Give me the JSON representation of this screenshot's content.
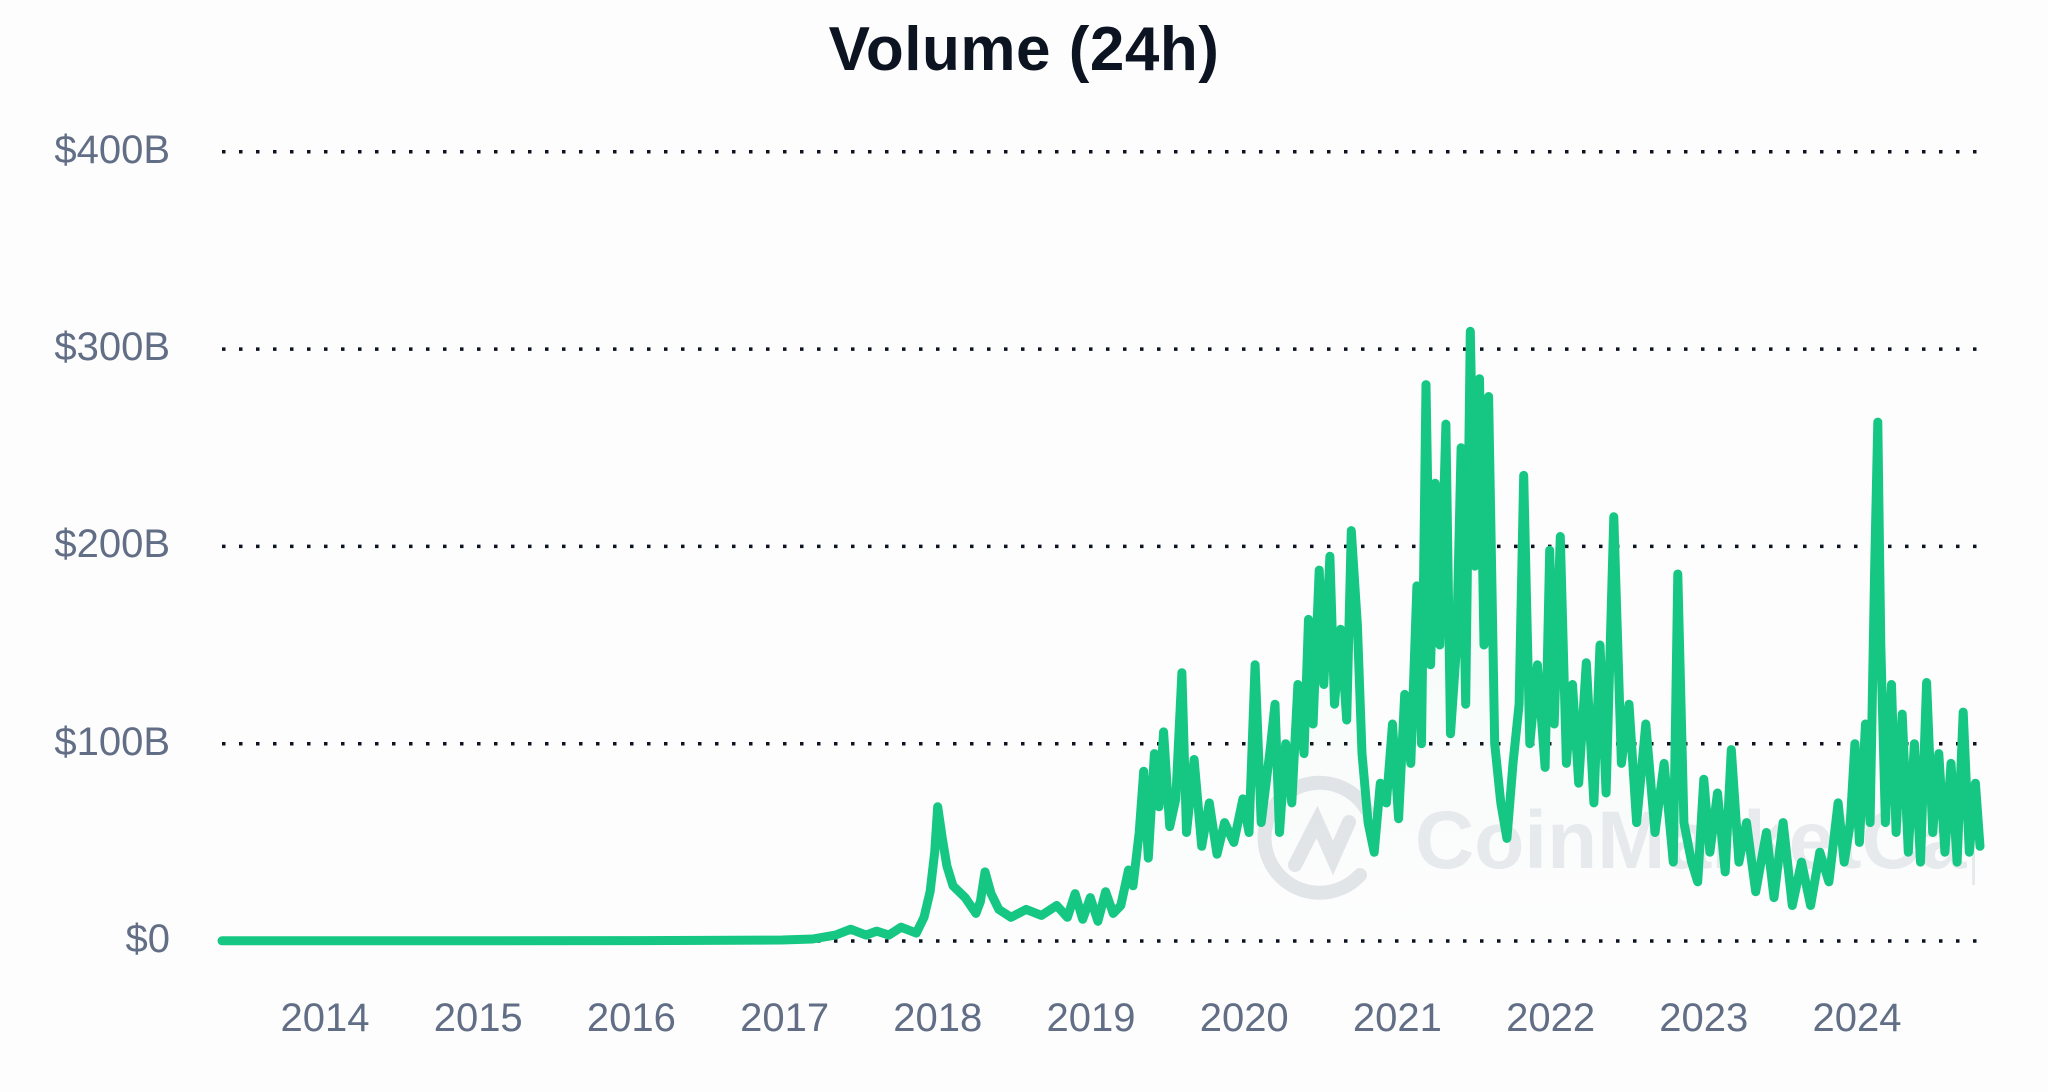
{
  "title": "Volume (24h)",
  "colors": {
    "line": "#16c784",
    "grid": "#0d1421",
    "axis_text": "#616e85",
    "title": "#0d1421",
    "watermark": "#e4e6ea"
  },
  "watermark": {
    "text": "CoinMarketCap"
  },
  "y_axis": {
    "ticks": [
      {
        "label": "$400B",
        "value": 400
      },
      {
        "label": "$300B",
        "value": 300
      },
      {
        "label": "$200B",
        "value": 200
      },
      {
        "label": "$100B",
        "value": 100
      },
      {
        "label": "$0",
        "value": 0
      }
    ]
  },
  "x_axis": {
    "ticks": [
      {
        "label": "2014",
        "value": 2014.0
      },
      {
        "label": "2015",
        "value": 2015.0
      },
      {
        "label": "2016",
        "value": 2016.0
      },
      {
        "label": "2017",
        "value": 2017.0
      },
      {
        "label": "2018",
        "value": 2018.0
      },
      {
        "label": "2019",
        "value": 2019.0
      },
      {
        "label": "2020",
        "value": 2020.0
      },
      {
        "label": "2021",
        "value": 2021.0
      },
      {
        "label": "2022",
        "value": 2022.0
      },
      {
        "label": "2023",
        "value": 2023.0
      },
      {
        "label": "2024",
        "value": 2024.0
      }
    ]
  },
  "chart_data": {
    "type": "line",
    "title": "Volume (24h)",
    "xlabel": "",
    "ylabel": "",
    "ylim": [
      0,
      400
    ],
    "xlim": [
      2013.33,
      2024.85
    ],
    "y_unit": "USD billions",
    "grid": "horizontal dotted",
    "legend": "none",
    "series": [
      {
        "name": "Volume (24h)",
        "points": [
          [
            2013.33,
            0.1
          ],
          [
            2014.0,
            0.1
          ],
          [
            2015.0,
            0.1
          ],
          [
            2016.0,
            0.2
          ],
          [
            2016.5,
            0.3
          ],
          [
            2017.0,
            0.5
          ],
          [
            2017.2,
            1
          ],
          [
            2017.35,
            3
          ],
          [
            2017.45,
            6
          ],
          [
            2017.55,
            3
          ],
          [
            2017.62,
            5
          ],
          [
            2017.7,
            3
          ],
          [
            2017.78,
            7
          ],
          [
            2017.88,
            4
          ],
          [
            2017.93,
            12
          ],
          [
            2017.97,
            25
          ],
          [
            2018.0,
            45
          ],
          [
            2018.02,
            68
          ],
          [
            2018.05,
            52
          ],
          [
            2018.08,
            38
          ],
          [
            2018.12,
            28
          ],
          [
            2018.2,
            22
          ],
          [
            2018.27,
            14
          ],
          [
            2018.3,
            20
          ],
          [
            2018.33,
            35
          ],
          [
            2018.37,
            24
          ],
          [
            2018.42,
            16
          ],
          [
            2018.5,
            12
          ],
          [
            2018.6,
            16
          ],
          [
            2018.7,
            13
          ],
          [
            2018.8,
            18
          ],
          [
            2018.87,
            12
          ],
          [
            2018.92,
            24
          ],
          [
            2018.97,
            11
          ],
          [
            2019.02,
            22
          ],
          [
            2019.07,
            10
          ],
          [
            2019.12,
            25
          ],
          [
            2019.17,
            14
          ],
          [
            2019.22,
            18
          ],
          [
            2019.27,
            36
          ],
          [
            2019.3,
            28
          ],
          [
            2019.34,
            55
          ],
          [
            2019.37,
            86
          ],
          [
            2019.4,
            42
          ],
          [
            2019.44,
            95
          ],
          [
            2019.47,
            68
          ],
          [
            2019.5,
            106
          ],
          [
            2019.54,
            58
          ],
          [
            2019.58,
            72
          ],
          [
            2019.62,
            136
          ],
          [
            2019.65,
            55
          ],
          [
            2019.7,
            92
          ],
          [
            2019.75,
            48
          ],
          [
            2019.8,
            70
          ],
          [
            2019.85,
            44
          ],
          [
            2019.9,
            60
          ],
          [
            2019.96,
            50
          ],
          [
            2020.02,
            72
          ],
          [
            2020.06,
            55
          ],
          [
            2020.1,
            140
          ],
          [
            2020.14,
            60
          ],
          [
            2020.2,
            98
          ],
          [
            2020.23,
            120
          ],
          [
            2020.26,
            55
          ],
          [
            2020.3,
            100
          ],
          [
            2020.34,
            70
          ],
          [
            2020.38,
            130
          ],
          [
            2020.42,
            95
          ],
          [
            2020.45,
            163
          ],
          [
            2020.48,
            110
          ],
          [
            2020.52,
            188
          ],
          [
            2020.55,
            130
          ],
          [
            2020.59,
            195
          ],
          [
            2020.62,
            120
          ],
          [
            2020.66,
            158
          ],
          [
            2020.7,
            112
          ],
          [
            2020.73,
            208
          ],
          [
            2020.77,
            160
          ],
          [
            2020.8,
            95
          ],
          [
            2020.84,
            60
          ],
          [
            2020.88,
            45
          ],
          [
            2020.92,
            80
          ],
          [
            2020.96,
            70
          ],
          [
            2021.0,
            110
          ],
          [
            2021.04,
            62
          ],
          [
            2021.08,
            125
          ],
          [
            2021.12,
            90
          ],
          [
            2021.16,
            180
          ],
          [
            2021.19,
            100
          ],
          [
            2021.22,
            282
          ],
          [
            2021.25,
            140
          ],
          [
            2021.28,
            232
          ],
          [
            2021.31,
            150
          ],
          [
            2021.35,
            262
          ],
          [
            2021.38,
            105
          ],
          [
            2021.42,
            150
          ],
          [
            2021.45,
            250
          ],
          [
            2021.48,
            120
          ],
          [
            2021.51,
            309
          ],
          [
            2021.54,
            190
          ],
          [
            2021.57,
            285
          ],
          [
            2021.6,
            150
          ],
          [
            2021.63,
            276
          ],
          [
            2021.67,
            100
          ],
          [
            2021.71,
            70
          ],
          [
            2021.75,
            52
          ],
          [
            2021.79,
            90
          ],
          [
            2021.83,
            120
          ],
          [
            2021.86,
            236
          ],
          [
            2021.9,
            100
          ],
          [
            2021.95,
            140
          ],
          [
            2022.0,
            88
          ],
          [
            2022.03,
            198
          ],
          [
            2022.06,
            110
          ],
          [
            2022.1,
            205
          ],
          [
            2022.14,
            90
          ],
          [
            2022.18,
            130
          ],
          [
            2022.22,
            80
          ],
          [
            2022.27,
            141
          ],
          [
            2022.32,
            70
          ],
          [
            2022.36,
            150
          ],
          [
            2022.4,
            75
          ],
          [
            2022.45,
            215
          ],
          [
            2022.5,
            90
          ],
          [
            2022.55,
            120
          ],
          [
            2022.6,
            60
          ],
          [
            2022.66,
            110
          ],
          [
            2022.72,
            55
          ],
          [
            2022.78,
            90
          ],
          [
            2022.84,
            40
          ],
          [
            2022.87,
            186
          ],
          [
            2022.91,
            60
          ],
          [
            2022.96,
            40
          ],
          [
            2023.0,
            30
          ],
          [
            2023.04,
            82
          ],
          [
            2023.08,
            45
          ],
          [
            2023.13,
            75
          ],
          [
            2023.18,
            35
          ],
          [
            2023.22,
            97
          ],
          [
            2023.27,
            40
          ],
          [
            2023.32,
            60
          ],
          [
            2023.38,
            25
          ],
          [
            2023.45,
            55
          ],
          [
            2023.5,
            22
          ],
          [
            2023.56,
            60
          ],
          [
            2023.62,
            18
          ],
          [
            2023.68,
            40
          ],
          [
            2023.74,
            18
          ],
          [
            2023.8,
            45
          ],
          [
            2023.86,
            30
          ],
          [
            2023.92,
            70
          ],
          [
            2023.96,
            40
          ],
          [
            2024.0,
            60
          ],
          [
            2024.03,
            100
          ],
          [
            2024.06,
            50
          ],
          [
            2024.1,
            110
          ],
          [
            2024.13,
            60
          ],
          [
            2024.16,
            190
          ],
          [
            2024.18,
            263
          ],
          [
            2024.2,
            150
          ],
          [
            2024.23,
            60
          ],
          [
            2024.27,
            130
          ],
          [
            2024.3,
            55
          ],
          [
            2024.34,
            115
          ],
          [
            2024.38,
            45
          ],
          [
            2024.42,
            100
          ],
          [
            2024.46,
            40
          ],
          [
            2024.5,
            131
          ],
          [
            2024.54,
            55
          ],
          [
            2024.58,
            95
          ],
          [
            2024.62,
            45
          ],
          [
            2024.66,
            90
          ],
          [
            2024.7,
            40
          ],
          [
            2024.74,
            116
          ],
          [
            2024.78,
            45
          ],
          [
            2024.82,
            80
          ],
          [
            2024.85,
            48
          ]
        ]
      }
    ],
    "annotations": [
      "CoinMarketCap watermark"
    ]
  }
}
